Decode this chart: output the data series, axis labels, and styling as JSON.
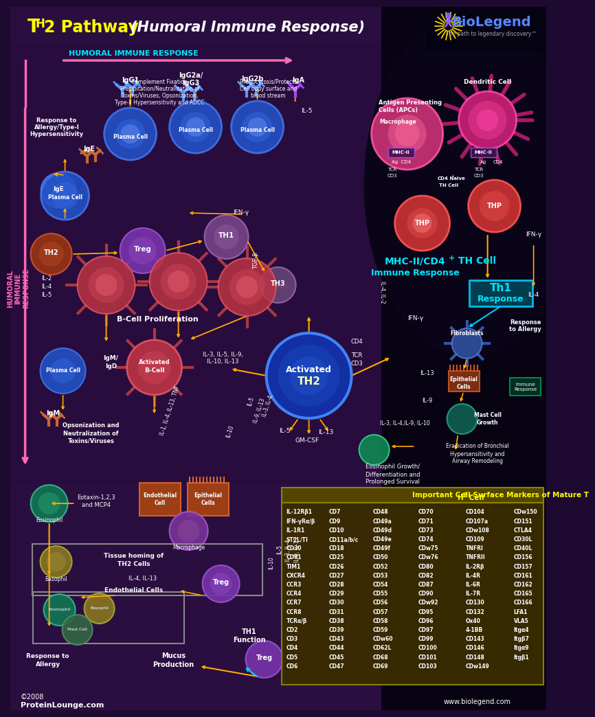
{
  "bg_main": "#1e0a30",
  "bg_right": "#0a0515",
  "title_th2": "TH2 Pathway ",
  "title_humoral": "(Humoral Immune Response)",
  "biolegend": "BioLegend",
  "tagline": "The path to legendary discovery™",
  "humoral_label": "HUMORAL IMMUNE RESPONSE",
  "left_label": "HUMORAL\nIMMUNE\nRESPONSE",
  "copyright": "©2008\nProteinLounge.com",
  "website": "www.biolegend.com",
  "table_title": "Important Cell Surface Markers of Mature TH2 Cell",
  "table_cols": [
    [
      "IL-12Rβ1",
      "IFN-γRα/β",
      "IL-1R1",
      "ST2L/TI",
      "CD30",
      "CD81",
      "TIM1",
      "CXCR4",
      "CCR3",
      "CCR4",
      "CCR7",
      "CCR8",
      "TCRα/β",
      "CD2",
      "CD3",
      "CD4",
      "CD5",
      "CD6"
    ],
    [
      "CD7",
      "CD9",
      "CD10",
      "CD11a/b/c",
      "CD18",
      "CD25",
      "CD26",
      "CD27",
      "CD28",
      "CD29",
      "CD30",
      "CD31",
      "CD38",
      "CD39",
      "CD43",
      "CD44",
      "CD45",
      "CD47"
    ],
    [
      "CD48",
      "CD49a",
      "CD49d",
      "CD49e",
      "CD49f",
      "CD50",
      "CD52",
      "CD53",
      "CD54",
      "CD55",
      "CD56",
      "CD57",
      "CD58",
      "CD59",
      "CDw60",
      "CD62L",
      "CD68",
      "CD69"
    ],
    [
      "CD70",
      "CD71",
      "CD73",
      "CD74",
      "CDw75",
      "CDw76",
      "CD80",
      "CD82",
      "CD87",
      "CD90",
      "CDw92",
      "CD95",
      "CD96",
      "CD97",
      "CD99",
      "CD100",
      "CD101",
      "CD103"
    ],
    [
      "CD104",
      "CD107a",
      "CDw108",
      "CD109",
      "TNFRI",
      "TNFRII",
      "IL-2Rβ",
      "IL-4R",
      "IL-6R",
      "IL-7R",
      "CD130",
      "CD132",
      "Ox40",
      "4-1BB",
      "CD143",
      "CD146",
      "CD148",
      "CDw149"
    ],
    [
      "CDw150",
      "CD151",
      "CTLA4",
      "CD30L",
      "CD40L",
      "CD156",
      "CD157",
      "CD161",
      "CD162",
      "CD165",
      "CD166",
      "LFA1",
      "VLA5",
      "Itgα4",
      "Itgβ7",
      "Itgα9",
      "Itgβ1"
    ]
  ],
  "colors": {
    "pink_arrow": "#ff69b4",
    "orange_arrow": "#ffaa00",
    "cyan": "#00e5ff",
    "yellow": "#ffff00",
    "green_label": "#00ff44",
    "white": "#ffffff",
    "plasma_blue": "#3366cc",
    "b_cell_red": "#cc4455",
    "th2_blue": "#2255bb",
    "treg_purple": "#8844aa",
    "th1_purple": "#885599",
    "th3_lavender": "#9977bb",
    "eosinophil_teal": "#118844",
    "basophil_gold": "#886622",
    "mast_teal": "#227766",
    "fibroblast_blue": "#224488",
    "epithelial_brown": "#884422",
    "endothelial_orange": "#aa5511",
    "macrophage_purple": "#773388",
    "apc_pink": "#cc3366",
    "dendritic_magenta": "#cc2277"
  }
}
